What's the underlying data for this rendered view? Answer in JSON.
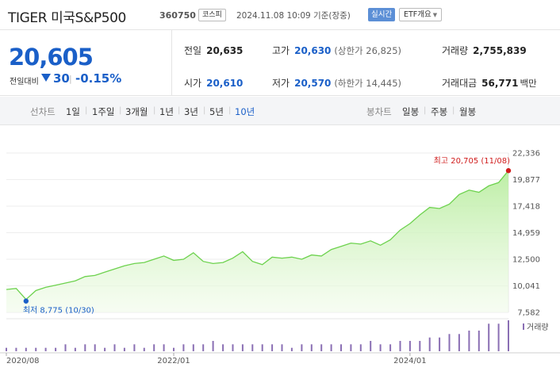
{
  "header": {
    "name": "TIGER 미국S&P500",
    "code": "360750",
    "market": "코스피",
    "timestamp": "2024.11.08 10:09 기준(장중)",
    "realtime_label": "실시간",
    "etf_info_label": "ETF개요"
  },
  "summary": {
    "price": "20,605",
    "change_label": "전일대비",
    "change_value": "30",
    "change_direction": "down",
    "change_separator": "|",
    "change_pct": "-0.15%",
    "stats": {
      "prev_close": {
        "label": "전일",
        "value": "20,635"
      },
      "high": {
        "label": "고가",
        "value": "20,630",
        "sub": "(상한가 26,825)"
      },
      "volume": {
        "label": "거래량",
        "value": "2,755,839"
      },
      "open": {
        "label": "시가",
        "value": "20,610"
      },
      "low": {
        "label": "저가",
        "value": "20,570",
        "sub": "(하한가 14,445)"
      },
      "trade_value": {
        "label": "거래대금",
        "value": "56,771",
        "unit": "백만"
      }
    }
  },
  "period_bar": {
    "line_chart_label": "선차트",
    "periods": [
      "1일",
      "1주일",
      "3개월",
      "1년",
      "3년",
      "5년",
      "10년"
    ],
    "active_period": "10년",
    "candle_chart_label": "봉차트",
    "candle_periods": [
      "일봉",
      "주봉",
      "월봉"
    ]
  },
  "colors": {
    "price_blue": "#1a5fc8",
    "up_red": "#d01c1c",
    "line_green": "#6dd24e",
    "volume_bar": "#8a6fb4"
  },
  "chart_data": {
    "type": "area",
    "x": [
      "2020-08",
      "2020-09",
      "2020-10",
      "2020-11",
      "2020-12",
      "2021-01",
      "2021-02",
      "2021-03",
      "2021-04",
      "2021-05",
      "2021-06",
      "2021-07",
      "2021-08",
      "2021-09",
      "2021-10",
      "2021-11",
      "2021-12",
      "2022-01",
      "2022-02",
      "2022-03",
      "2022-04",
      "2022-05",
      "2022-06",
      "2022-07",
      "2022-08",
      "2022-09",
      "2022-10",
      "2022-11",
      "2022-12",
      "2023-01",
      "2023-02",
      "2023-03",
      "2023-04",
      "2023-05",
      "2023-06",
      "2023-07",
      "2023-08",
      "2023-09",
      "2023-10",
      "2023-11",
      "2023-12",
      "2024-01",
      "2024-02",
      "2024-03",
      "2024-04",
      "2024-05",
      "2024-06",
      "2024-07",
      "2024-08",
      "2024-09",
      "2024-10",
      "2024-11"
    ],
    "values": [
      9700,
      9800,
      8775,
      9600,
      9900,
      10100,
      10300,
      10500,
      10900,
      11000,
      11300,
      11600,
      11900,
      12100,
      12200,
      12500,
      12800,
      12400,
      12500,
      13100,
      12300,
      12100,
      12200,
      12600,
      13200,
      12300,
      12000,
      12700,
      12600,
      12700,
      12500,
      12900,
      12800,
      13400,
      13700,
      14000,
      13900,
      14200,
      13800,
      14300,
      15200,
      15800,
      16600,
      17300,
      17200,
      17600,
      18500,
      18900,
      18700,
      19300,
      19600,
      20705
    ],
    "volume_values": [
      1,
      1,
      1,
      1,
      1,
      1,
      2,
      1,
      2,
      2,
      1,
      2,
      1,
      2,
      1,
      2,
      2,
      1,
      2,
      2,
      2,
      3,
      2,
      2,
      2,
      2,
      2,
      2,
      2,
      1,
      2,
      2,
      2,
      2,
      2,
      2,
      2,
      3,
      2,
      2,
      3,
      3,
      3,
      4,
      4,
      5,
      5,
      6,
      6,
      8,
      8,
      9
    ],
    "yticks": [
      "22,336",
      "19,877",
      "17,418",
      "14,959",
      "12,500",
      "10,041",
      "7,582"
    ],
    "ylim": [
      7582,
      22336
    ],
    "xticks": [
      "2020/08",
      "2022/01",
      "2024/01"
    ],
    "xtick_positions": [
      "2020-08",
      "2022-01",
      "2024-01"
    ],
    "max_label": "최고 20,705 (11/08)",
    "max_date": "2024-11",
    "min_label": "최저 8,775 (10/30)",
    "min_date": "2020-10",
    "volume_legend": "거래량"
  }
}
